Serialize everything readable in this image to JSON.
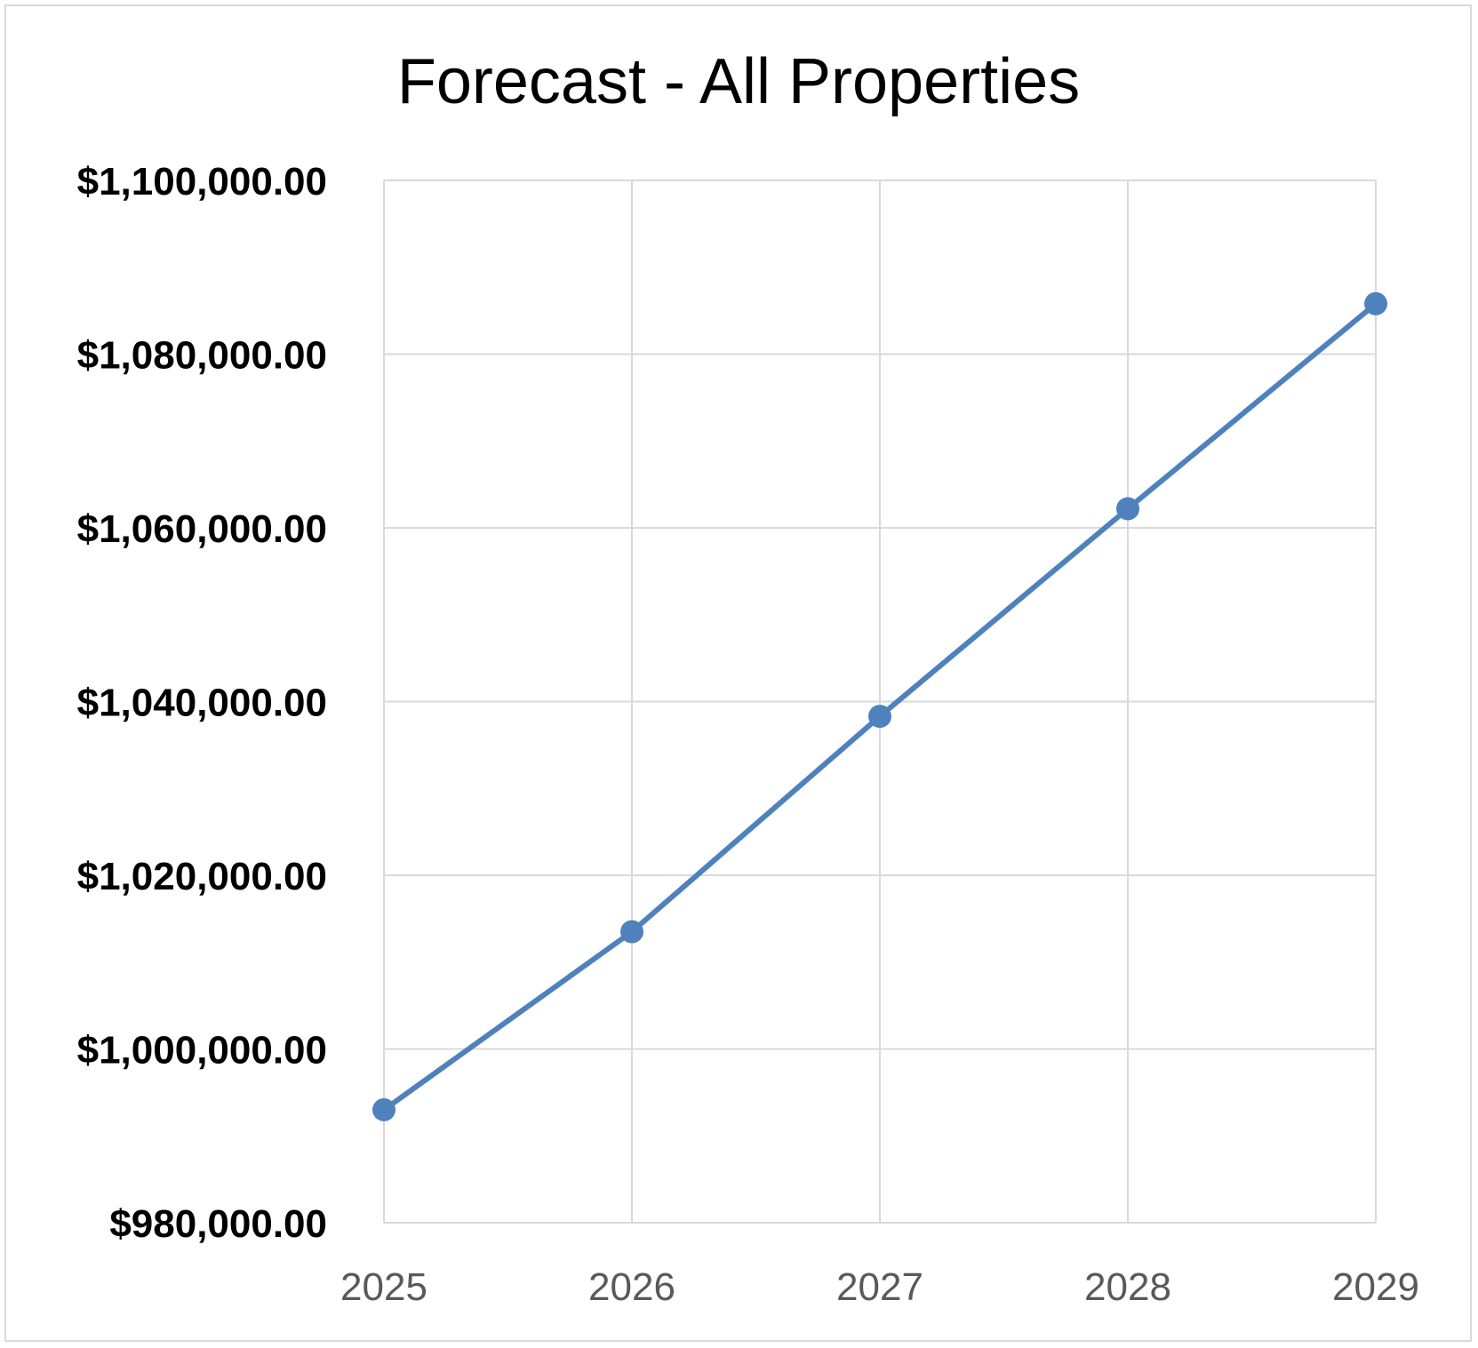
{
  "chart_data": {
    "type": "line",
    "title": "Forecast - All Properties",
    "xlabel": "",
    "ylabel": "",
    "categories": [
      "2025",
      "2026",
      "2027",
      "2028",
      "2029"
    ],
    "series": [
      {
        "values": [
          993000,
          1013500,
          1038300,
          1062200,
          1085800
        ],
        "color": "#4f81bd"
      }
    ],
    "ylim": [
      980000,
      1100000
    ],
    "yticks": [
      980000,
      1000000,
      1020000,
      1040000,
      1060000,
      1080000,
      1100000
    ],
    "ytick_labels": [
      "$980,000.00",
      "$1,000,000.00",
      "$1,020,000.00",
      "$1,040,000.00",
      "$1,060,000.00",
      "$1,080,000.00",
      "$1,100,000.00"
    ],
    "grid": true,
    "markers": true,
    "legend": "none"
  }
}
